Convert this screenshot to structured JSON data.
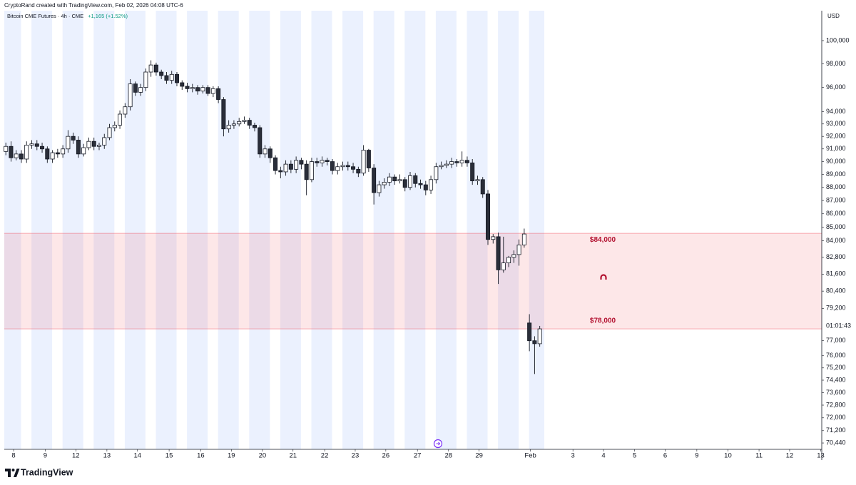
{
  "header": {
    "credit": "CryptoRand created with TradingView.com, Feb 02, 2026 04:08 UTC-6",
    "brand": "TradingView"
  },
  "chart_data": {
    "type": "candlestick",
    "symbol": "Bitcoin CME Futures · 4h · CME",
    "change": "+1,165 (+1.52%)",
    "currency": "USD",
    "countdown": "01:01:43",
    "up_color": "#ffffff",
    "down_color": "#2a2e39",
    "wick_color": "#131722",
    "log": true,
    "ylim": [
      70050,
      102640
    ],
    "yticks": [
      {
        "value": 100000,
        "label": "100,000"
      },
      {
        "value": 98000,
        "label": "98,000"
      },
      {
        "value": 96000,
        "label": "96,000"
      },
      {
        "value": 94000,
        "label": "94,000"
      },
      {
        "value": 93000,
        "label": "93,000"
      },
      {
        "value": 92000,
        "label": "92,000"
      },
      {
        "value": 91000,
        "label": "91,000"
      },
      {
        "value": 90000,
        "label": "90,000"
      },
      {
        "value": 89000,
        "label": "89,000"
      },
      {
        "value": 88000,
        "label": "88,000"
      },
      {
        "value": 87000,
        "label": "87,000"
      },
      {
        "value": 86000,
        "label": "86,000"
      },
      {
        "value": 85000,
        "label": "85,000"
      },
      {
        "value": 84000,
        "label": "84,000"
      },
      {
        "value": 82800,
        "label": "82,800"
      },
      {
        "value": 81600,
        "label": "81,600"
      },
      {
        "value": 80400,
        "label": "80,400"
      },
      {
        "value": 79200,
        "label": "79,200"
      },
      {
        "value": 77000,
        "label": "77,000"
      },
      {
        "value": 76000,
        "label": "76,000"
      },
      {
        "value": 75200,
        "label": "75,200"
      },
      {
        "value": 74400,
        "label": "74,400"
      },
      {
        "value": 73600,
        "label": "73,600"
      },
      {
        "value": 72800,
        "label": "72,800"
      },
      {
        "value": 72000,
        "label": "72,000"
      },
      {
        "value": 71200,
        "label": "71,200"
      },
      {
        "value": 70440,
        "label": "70,440"
      }
    ],
    "xlim": [
      -0.3,
      157.4
    ],
    "xticks": [
      {
        "value": 1.5,
        "label": "8"
      },
      {
        "value": 7.6,
        "label": "9"
      },
      {
        "value": 13.5,
        "label": "12"
      },
      {
        "value": 19.5,
        "label": "13"
      },
      {
        "value": 25.4,
        "label": "14"
      },
      {
        "value": 31.5,
        "label": "15"
      },
      {
        "value": 37.6,
        "label": "16"
      },
      {
        "value": 43.5,
        "label": "19"
      },
      {
        "value": 49.5,
        "label": "20"
      },
      {
        "value": 55.4,
        "label": "21"
      },
      {
        "value": 61.5,
        "label": "22"
      },
      {
        "value": 67.4,
        "label": "23"
      },
      {
        "value": 73.3,
        "label": "26"
      },
      {
        "value": 79.4,
        "label": "27"
      },
      {
        "value": 85.4,
        "label": "28"
      },
      {
        "value": 91.3,
        "label": "29"
      },
      {
        "value": 101.2,
        "label": "Feb"
      },
      {
        "value": 109.4,
        "label": "3"
      },
      {
        "value": 115.3,
        "label": "4"
      },
      {
        "value": 121.3,
        "label": "5"
      },
      {
        "value": 127.2,
        "label": "6"
      },
      {
        "value": 133.3,
        "label": "9"
      },
      {
        "value": 139.3,
        "label": "10"
      },
      {
        "value": 145.3,
        "label": "11"
      },
      {
        "value": 151.2,
        "label": "12"
      },
      {
        "value": 157.2,
        "label": "13"
      }
    ],
    "zone": {
      "top": 84550,
      "bottom": 77800,
      "color": "#f23645",
      "top_label": "$84,000",
      "bottom_label": "$78,000"
    },
    "open": [
      90800,
      91200,
      90300,
      90600,
      90200,
      91300,
      91400,
      91200,
      91000,
      90200,
      90700,
      90600,
      91000,
      92000,
      91700,
      90600,
      91100,
      91600,
      91200,
      91300,
      91900,
      92700,
      92900,
      93800,
      94400,
      96300,
      95600,
      96000,
      97300,
      97900,
      97300,
      97000,
      96600,
      97100,
      96400,
      96100,
      95900,
      96000,
      95700,
      96000,
      95500,
      95900,
      95000,
      92600,
      92900,
      93000,
      93200,
      93300,
      92900,
      92700,
      90600,
      91000,
      90300,
      89300,
      89200,
      89800,
      89400,
      90100,
      89800,
      88600,
      90000,
      89900,
      90100,
      90000,
      89300,
      89600,
      89700,
      89600,
      89400,
      89100,
      90900,
      89500,
      87600,
      88200,
      88400,
      88800,
      88500,
      88600,
      88000,
      88900,
      88300,
      88200,
      87800,
      88600,
      89600,
      89700,
      89800,
      90000,
      89900,
      90100,
      89900,
      88500,
      88600,
      87500,
      84100,
      84300,
      81900,
      82400,
      82800,
      83000,
      83700,
      78200,
      77000,
      76800
    ],
    "high": [
      91500,
      91600,
      90900,
      90900,
      91600,
      91700,
      91700,
      91500,
      91200,
      90900,
      91000,
      91300,
      92500,
      92300,
      92000,
      91400,
      91900,
      91900,
      91500,
      92200,
      93000,
      93200,
      94100,
      94700,
      96700,
      96500,
      96300,
      97600,
      98300,
      98100,
      97500,
      97300,
      97400,
      97300,
      96600,
      96400,
      96300,
      96200,
      96200,
      96200,
      96100,
      96100,
      95200,
      93300,
      93300,
      93500,
      93600,
      93500,
      93100,
      92900,
      91300,
      91200,
      90500,
      89600,
      90100,
      90100,
      90400,
      90300,
      90100,
      90300,
      90300,
      90400,
      90300,
      90200,
      89900,
      90000,
      90000,
      89900,
      89600,
      91300,
      91000,
      89800,
      88500,
      88700,
      89100,
      89000,
      89000,
      88800,
      89200,
      89100,
      88600,
      88500,
      88900,
      89900,
      90000,
      90100,
      90300,
      90200,
      90800,
      90400,
      90200,
      88900,
      88800,
      87800,
      84500,
      84600,
      84300,
      82900,
      83300,
      84100,
      84900,
      78800,
      77300,
      78000
    ],
    "low": [
      90500,
      90000,
      90100,
      89900,
      89900,
      91000,
      90900,
      90700,
      89900,
      89900,
      90300,
      90300,
      90700,
      91400,
      90300,
      90400,
      90900,
      90900,
      90900,
      91000,
      91700,
      92400,
      92600,
      93500,
      94100,
      95300,
      95300,
      95700,
      96900,
      97000,
      96700,
      96300,
      96300,
      96100,
      95800,
      95600,
      95600,
      95400,
      95500,
      95300,
      95200,
      94700,
      92000,
      92300,
      92600,
      92800,
      93000,
      92600,
      92400,
      90300,
      90300,
      89900,
      89000,
      88700,
      88900,
      89100,
      89100,
      89400,
      87400,
      88400,
      89600,
      89600,
      89700,
      89000,
      89000,
      89300,
      89300,
      89100,
      88800,
      88900,
      89200,
      86700,
      87300,
      87900,
      88100,
      88200,
      88300,
      87700,
      87800,
      88000,
      87900,
      87400,
      87500,
      88300,
      89400,
      89500,
      89500,
      89600,
      89600,
      89600,
      88200,
      88200,
      87200,
      83700,
      83800,
      80900,
      81700,
      82100,
      82400,
      82200,
      83500,
      76300,
      74800,
      76600
    ],
    "close": [
      91200,
      90300,
      90600,
      90200,
      91300,
      91400,
      91200,
      91000,
      90200,
      90700,
      90600,
      91000,
      92000,
      91700,
      90600,
      91100,
      91600,
      91200,
      91300,
      91900,
      92700,
      92900,
      93800,
      94400,
      96300,
      95600,
      96000,
      97300,
      97900,
      97300,
      97000,
      96600,
      97100,
      96400,
      96100,
      95900,
      96000,
      95700,
      96000,
      95500,
      95900,
      95000,
      92600,
      92900,
      93000,
      93200,
      93300,
      92900,
      92700,
      90600,
      91000,
      90300,
      89300,
      89200,
      89800,
      89400,
      90100,
      89800,
      88600,
      90000,
      89900,
      90100,
      90000,
      89300,
      89600,
      89700,
      89600,
      89400,
      89100,
      90900,
      89500,
      87600,
      88200,
      88400,
      88800,
      88500,
      88600,
      88000,
      88900,
      88300,
      88200,
      87800,
      88600,
      89600,
      89700,
      89800,
      90000,
      89900,
      90100,
      89900,
      88500,
      88600,
      87500,
      84100,
      84300,
      81900,
      82400,
      82800,
      83000,
      83700,
      84500,
      77000,
      76800,
      77800
    ]
  }
}
